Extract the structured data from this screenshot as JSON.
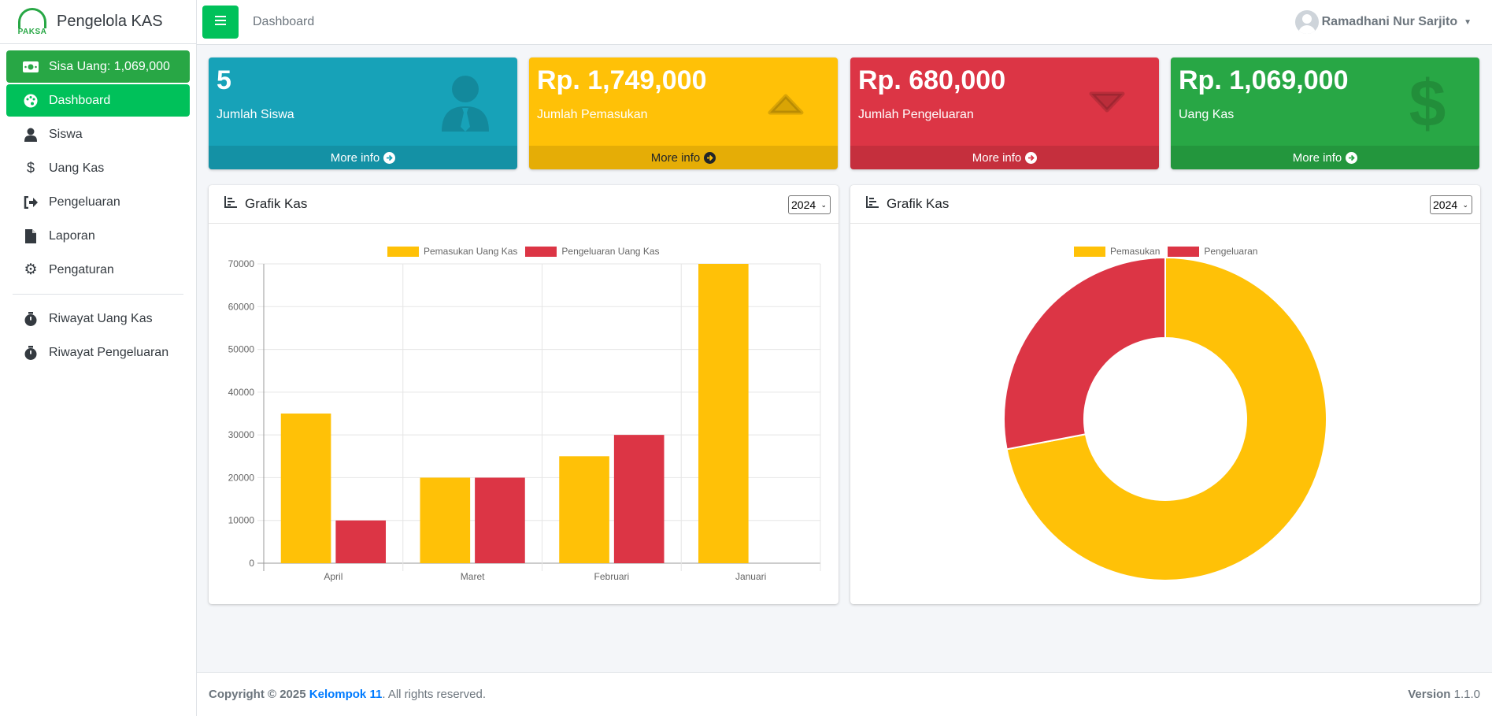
{
  "brand": {
    "logo_text": "PAKSA",
    "name": "Pengelola KAS"
  },
  "sidebar": {
    "balance": "Sisa Uang: 1,069,000",
    "items": [
      {
        "label": "Dashboard",
        "icon": "palette-icon"
      },
      {
        "label": "Siswa",
        "icon": "user-icon"
      },
      {
        "label": "Uang Kas",
        "icon": "dollar-icon"
      },
      {
        "label": "Pengeluaran",
        "icon": "sign-out-icon"
      },
      {
        "label": "Laporan",
        "icon": "file-icon"
      },
      {
        "label": "Pengaturan",
        "icon": "gear-icon"
      }
    ],
    "history": [
      {
        "label": "Riwayat Uang Kas",
        "icon": "stopwatch-icon"
      },
      {
        "label": "Riwayat Pengeluaran",
        "icon": "stopwatch-icon"
      }
    ]
  },
  "topbar": {
    "breadcrumb": "Dashboard",
    "user": "Ramadhani Nur Sarjito"
  },
  "boxes": [
    {
      "value": "5",
      "label": "Jumlah Siswa",
      "more": "More info",
      "color": "#17a2b8"
    },
    {
      "value": "Rp. 1,749,000",
      "label": "Jumlah Pemasukan",
      "more": "More info",
      "color": "#ffc107"
    },
    {
      "value": "Rp. 680,000",
      "label": "Jumlah Pengeluaran",
      "more": "More info",
      "color": "#dc3545"
    },
    {
      "value": "Rp. 1,069,000",
      "label": "Uang Kas",
      "more": "More info",
      "color": "#28a745"
    }
  ],
  "bar_card": {
    "title": "Grafik Kas",
    "year": "2024"
  },
  "pie_card": {
    "title": "Grafik Kas",
    "year": "2024"
  },
  "chart_data": [
    {
      "type": "bar",
      "categories": [
        "April",
        "Maret",
        "Februari",
        "Januari"
      ],
      "series": [
        {
          "name": "Pemasukan Uang Kas",
          "values": [
            35000,
            20000,
            25000,
            70000
          ],
          "color": "#ffc107"
        },
        {
          "name": "Pengeluaran Uang Kas",
          "values": [
            10000,
            20000,
            30000,
            0
          ],
          "color": "#dc3545"
        }
      ],
      "yticks": [
        "0",
        "10000",
        "20000",
        "30000",
        "40000",
        "50000",
        "60000",
        "70000"
      ],
      "ylim": [
        0,
        70000
      ],
      "grid": true,
      "legend": "top"
    },
    {
      "type": "pie",
      "labels": [
        "Pemasukan",
        "Pengeluaran"
      ],
      "values": [
        1749000,
        680000
      ],
      "colors": [
        "#ffc107",
        "#dc3545"
      ],
      "legend": "top"
    }
  ],
  "footer": {
    "copyright": "Copyright © 2025",
    "team": "Kelompok 11",
    "rights": ". All rights reserved.",
    "version_label": "Version",
    "version": "1.1.0"
  }
}
